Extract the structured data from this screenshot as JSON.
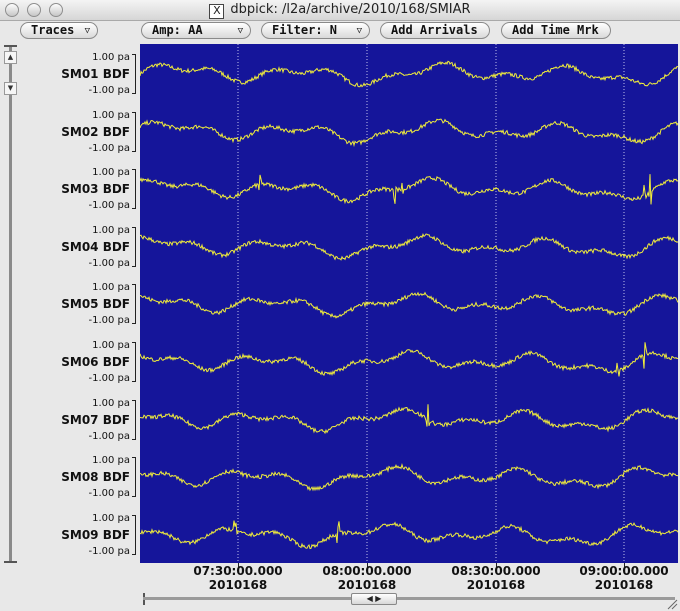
{
  "window": {
    "title": "dbpick: /l2a/archive/2010/168/SMIAR"
  },
  "toolbar": {
    "traces": "Traces",
    "amp": "Amp: AA",
    "filter": "Filter: N",
    "add_arrivals": "Add Arrivals",
    "add_time_mark": "Add Time Mrk"
  },
  "scale": {
    "top": "1.00 pa",
    "bottom": "-1.00 pa"
  },
  "channels": [
    "SM01 BDF",
    "SM02 BDF",
    "SM03 BDF",
    "SM04 BDF",
    "SM05 BDF",
    "SM06 BDF",
    "SM07 BDF",
    "SM08 BDF",
    "SM09 BDF"
  ],
  "time_axis": [
    {
      "time": "07:30:00.000",
      "day": "2010168"
    },
    {
      "time": "08:00:00.000",
      "day": "2010168"
    },
    {
      "time": "08:30:00.000",
      "day": "2010168"
    },
    {
      "time": "09:00:00.000",
      "day": "2010168"
    }
  ],
  "colors": {
    "plot_bg": "#15159a",
    "trace": "#f2ee3a",
    "grid": "#e8e8ff"
  }
}
